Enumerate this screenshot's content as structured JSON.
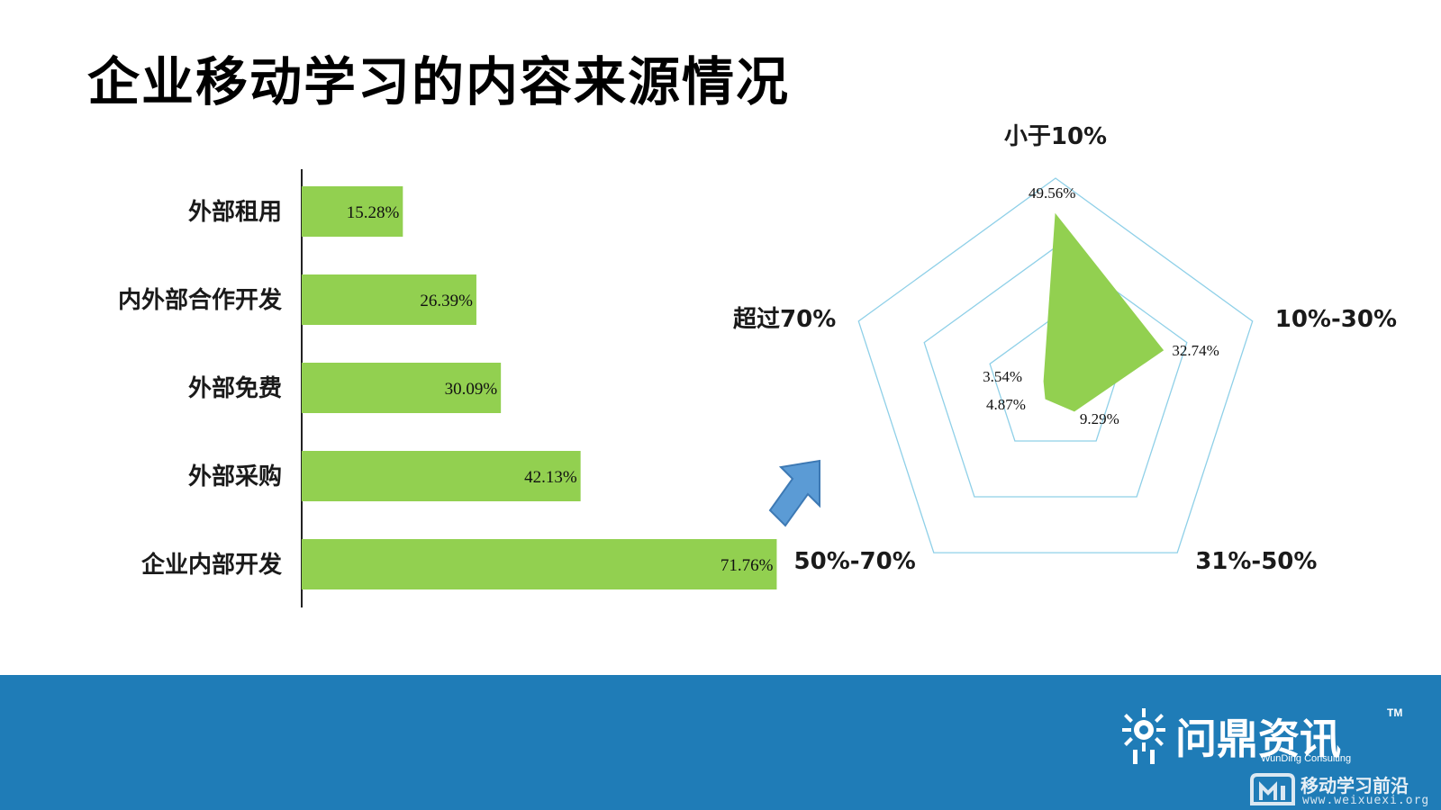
{
  "title": "企业移动学习的内容来源情况",
  "chart_data": [
    {
      "type": "bar",
      "orientation": "horizontal",
      "categories": [
        "外部租用",
        "内外部合作开发",
        "外部免费",
        "外部采购",
        "企业内部开发"
      ],
      "values": [
        15.28,
        26.39,
        30.09,
        42.13,
        71.76
      ],
      "labels": [
        "15.28%",
        "26.39%",
        "30.09%",
        "42.13%",
        "71.76%"
      ],
      "xlim": [
        0,
        80
      ],
      "color": "#92d050"
    },
    {
      "type": "radar",
      "axes": [
        "小于10%",
        "10%-30%",
        "31%-50%",
        "50%-70%",
        "超过70%"
      ],
      "values": [
        49.56,
        32.74,
        9.29,
        4.87,
        3.54
      ],
      "labels": [
        "49.56%",
        "32.74%",
        "9.29%",
        "4.87%",
        "3.54%"
      ],
      "rlim": [
        0,
        60
      ],
      "grid_rings": 3,
      "fill_color": "#92d050",
      "grid_color": "#8fd0e8"
    }
  ],
  "footer": {
    "brand_name": "问鼎资讯",
    "brand_tm": "TM",
    "brand_sub": "WunDing Consulting",
    "watermark_text": "移动学习前沿",
    "watermark_url": "www.weixuexi.org",
    "background": "#1f7cb7"
  }
}
